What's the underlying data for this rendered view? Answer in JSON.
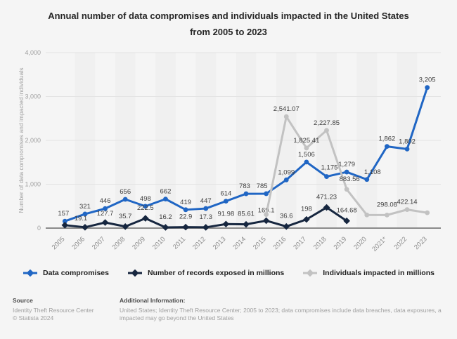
{
  "title": {
    "line1": "Annual number of data compromises and individuals impacted in the United States",
    "line2": "from 2005 to 2023"
  },
  "chart_data": {
    "type": "line",
    "title": "Annual number of data compromises and individuals impacted in the United States from 2005 to 2023",
    "y_axis_title": "Number of data compromises and impacted individuals",
    "categories": [
      "2005",
      "2006",
      "2007",
      "2008",
      "2009",
      "2010",
      "2011",
      "2012",
      "2013",
      "2014",
      "2015",
      "2016",
      "2017",
      "2018",
      "2019",
      "2020",
      "2021*",
      "2022",
      "2023"
    ],
    "y_ticks": [
      "0",
      "1,000",
      "2,000",
      "3,000",
      "4,000"
    ],
    "ylim": [
      0,
      4000
    ],
    "grid": "horizontal",
    "legend_position": "bottom",
    "series": [
      {
        "name": "Data compromises",
        "color": "#2066c4",
        "marker": "circle",
        "start_index": 0,
        "values": [
          157,
          321,
          446,
          656,
          498,
          662,
          419,
          447,
          614,
          783,
          785,
          1099,
          1506,
          1175,
          1279,
          1108,
          1862,
          1802,
          3205
        ],
        "labels": [
          "157",
          "321",
          "446",
          "656",
          "498",
          "662",
          "419",
          "447",
          "614",
          "783",
          "785",
          "1,099",
          "1,506",
          "1,175",
          "1,279",
          "1,108",
          "1,862",
          "1,802",
          "3,205"
        ]
      },
      {
        "name": "Number of records exposed in millions",
        "color": "#16263f",
        "marker": "diamond",
        "start_index": 0,
        "values": [
          67,
          19.1,
          127.7,
          35.7,
          222.5,
          16.2,
          22.9,
          17.3,
          91.98,
          85.61,
          169.1,
          36.6,
          198,
          471.23,
          164.68
        ],
        "labels": [
          "",
          "19.1",
          "127.7",
          "35.7",
          "222.5",
          "16.2",
          "22.9",
          "17.3",
          "91.98",
          "85.61",
          "169.1",
          "36.6",
          "198",
          "471.23",
          "164.68"
        ]
      },
      {
        "name": "Individuals impacted in millions",
        "color": "#c2c2c2",
        "marker": "circle",
        "start_index": 10,
        "values": [
          310,
          2541.07,
          1825.41,
          2227.85,
          883.56,
          300,
          298.08,
          422.14,
          350
        ],
        "labels": [
          "",
          "2,541.07",
          "1,825.41",
          "2,227.85",
          "883.56",
          "",
          "298.08",
          "422.14",
          ""
        ]
      }
    ]
  },
  "footer": {
    "source_label": "Source",
    "source_name": "Identity Theft Resource Center",
    "copyright": "© Statista 2024",
    "additional_label": "Additional Information:",
    "additional_line1": "United States; Identity Theft Resource Center; 2005 to 2023; data compromises include data breaches, data exposures, a",
    "additional_line2": "impacted may go beyond the United States"
  },
  "colors": {
    "background": "#f5f5f5",
    "gridline": "#e4e4e4",
    "baseline": "#8a8a8a",
    "axis_text": "#a0a0a0",
    "data_label": "#3f3f3f"
  }
}
